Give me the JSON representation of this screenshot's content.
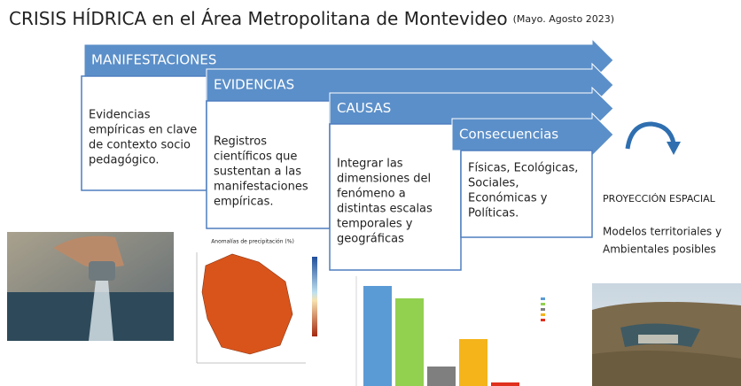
{
  "header": {
    "title": "CRISIS HÍDRICA en el Área Metropolitana de Montevideo",
    "period": "(Mayo. Agosto 2023)"
  },
  "stages": [
    {
      "label": "MANIFESTACIONES",
      "text": [
        "Evidencias",
        "empíricas en clave",
        "de contexto socio",
        "pedagógico."
      ]
    },
    {
      "label": "EVIDENCIAS",
      "text": [
        "Registros",
        "científicos que",
        "sustentan a las",
        "manifestaciones",
        "empíricas."
      ]
    },
    {
      "label": "CAUSAS",
      "text": [
        "Integrar las",
        "dimensiones del",
        "fenómeno a",
        "distintas escalas",
        "temporales y",
        "geográficas"
      ]
    },
    {
      "label": "Consecuencias",
      "text": [
        "Físicas, Ecológicas,",
        "Sociales,",
        "Económicas y",
        "Políticas."
      ]
    }
  ],
  "projection": {
    "title": "PROYECCIÓN ESPACIAL",
    "text": [
      "Modelos territoriales y",
      "Ambientales posibles"
    ]
  },
  "images": {
    "map_title": "Anomalías de precipitación (%)"
  }
}
